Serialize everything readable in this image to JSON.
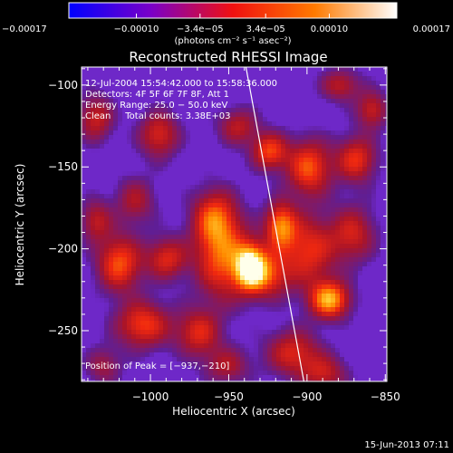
{
  "chart_data": {
    "type": "heatmap",
    "title": "Reconstructed RHESSI Image",
    "xlabel": "Heliocentric X (arcsec)",
    "ylabel": "Heliocentric Y (arcsec)",
    "xlim": [
      -1044,
      -849
    ],
    "ylim": [
      -281,
      -89
    ],
    "x_ticks": [
      -1000,
      -950,
      -900,
      -850
    ],
    "x_tick_labels": [
      "−1000",
      "−950",
      "−900",
      "−850"
    ],
    "y_ticks": [
      -100,
      -150,
      -200,
      -250
    ],
    "y_tick_labels": [
      "−100",
      "−150",
      "−200",
      "−250"
    ],
    "colorbar": {
      "range": [
        -0.00017,
        0.00017
      ],
      "ticks": [
        -0.00017,
        -0.0001,
        -3.4e-05,
        3.4e-05,
        0.0001,
        0.00017
      ],
      "tick_labels": [
        "−0.00017",
        "−0.00010",
        "−3.4e−05",
        "3.4e−05",
        "0.00010",
        "0.00017"
      ],
      "units": "(photons cm⁻² s⁻¹ asec⁻²)",
      "colors": [
        "#0000ff",
        "#7a00c8",
        "#f01010",
        "#ff7a00",
        "#ffffff"
      ]
    },
    "annotations": [
      "12-Jul-2004 15:54:42.000 to 15:58:36.000",
      "Detectors: 4F 5F 6F 7F 8F, Att 1",
      "Energy Range: 25.0 − 50.0 keV",
      "Clean     Total counts: 3.38E+03"
    ],
    "peak_label": "Position of Peak = [−937,−210]",
    "peak": {
      "x": -937,
      "y": -210,
      "value": 0.00017
    },
    "limb_line": [
      [
        -939,
        -89
      ],
      [
        -902,
        -281
      ]
    ],
    "grid": false,
    "sources": [
      {
        "x": -937,
        "y": -210,
        "v": 1.0,
        "sx": 7,
        "sy": 10
      },
      {
        "x": -887,
        "y": -230,
        "v": 0.9,
        "sx": 9,
        "sy": 8
      },
      {
        "x": -955,
        "y": -205,
        "v": 0.7,
        "sx": 12,
        "sy": 18
      },
      {
        "x": -960,
        "y": -180,
        "v": 0.6,
        "sx": 10,
        "sy": 12
      },
      {
        "x": -918,
        "y": -185,
        "v": 0.75,
        "sx": 7,
        "sy": 10
      },
      {
        "x": -925,
        "y": -215,
        "v": 0.55,
        "sx": 10,
        "sy": 10
      },
      {
        "x": -900,
        "y": -200,
        "v": 0.6,
        "sx": 12,
        "sy": 15
      },
      {
        "x": -872,
        "y": -190,
        "v": 0.5,
        "sx": 10,
        "sy": 12
      },
      {
        "x": -900,
        "y": -150,
        "v": 0.7,
        "sx": 10,
        "sy": 12
      },
      {
        "x": -870,
        "y": -145,
        "v": 0.6,
        "sx": 9,
        "sy": 10
      },
      {
        "x": -925,
        "y": -140,
        "v": 0.65,
        "sx": 8,
        "sy": 8
      },
      {
        "x": -945,
        "y": -125,
        "v": 0.45,
        "sx": 9,
        "sy": 8
      },
      {
        "x": -995,
        "y": -130,
        "v": 0.55,
        "sx": 9,
        "sy": 10
      },
      {
        "x": -1035,
        "y": -120,
        "v": 0.5,
        "sx": 8,
        "sy": 10
      },
      {
        "x": -1010,
        "y": -170,
        "v": 0.4,
        "sx": 9,
        "sy": 10
      },
      {
        "x": -1020,
        "y": -208,
        "v": 0.7,
        "sx": 10,
        "sy": 12
      },
      {
        "x": -990,
        "y": -205,
        "v": 0.55,
        "sx": 9,
        "sy": 9
      },
      {
        "x": -1005,
        "y": -245,
        "v": 0.65,
        "sx": 12,
        "sy": 10
      },
      {
        "x": -970,
        "y": -250,
        "v": 0.55,
        "sx": 10,
        "sy": 10
      },
      {
        "x": -910,
        "y": -262,
        "v": 0.55,
        "sx": 12,
        "sy": 10
      },
      {
        "x": -890,
        "y": -275,
        "v": 0.45,
        "sx": 10,
        "sy": 8
      },
      {
        "x": -952,
        "y": -270,
        "v": 0.4,
        "sx": 10,
        "sy": 8
      },
      {
        "x": -860,
        "y": -115,
        "v": 0.5,
        "sx": 7,
        "sy": 8
      },
      {
        "x": -880,
        "y": -100,
        "v": 0.45,
        "sx": 9,
        "sy": 7
      },
      {
        "x": -1035,
        "y": -182,
        "v": 0.45,
        "sx": 7,
        "sy": 9
      },
      {
        "x": -1030,
        "y": -270,
        "v": 0.35,
        "sx": 8,
        "sy": 8
      }
    ]
  },
  "footer": {
    "timestamp": "15-Jun-2013 07:11"
  }
}
